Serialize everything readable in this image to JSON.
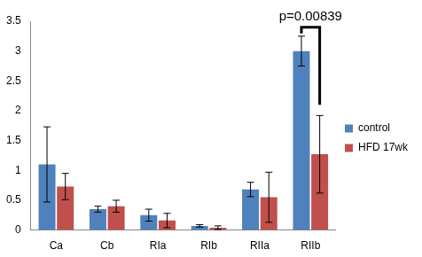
{
  "chart_data": {
    "type": "bar",
    "categories": [
      "Ca",
      "Cb",
      "RIa",
      "RIb",
      "RIIa",
      "RIIb"
    ],
    "series": [
      {
        "name": "control",
        "color": "#4f81bd",
        "values": [
          1.1,
          0.35,
          0.25,
          0.07,
          0.68,
          3.0
        ],
        "errors": [
          0.63,
          0.05,
          0.1,
          0.02,
          0.12,
          0.25
        ]
      },
      {
        "name": "HFD 17wk",
        "color": "#c0504d",
        "values": [
          0.73,
          0.4,
          0.16,
          0.04,
          0.55,
          1.27
        ],
        "errors": [
          0.22,
          0.1,
          0.12,
          0.03,
          0.42,
          0.65
        ]
      }
    ],
    "ylim": [
      0,
      3.5
    ],
    "yticks": [
      0,
      0.5,
      1,
      1.5,
      2,
      2.5,
      3,
      3.5
    ],
    "grid": false,
    "legend": "right",
    "annotations": [
      {
        "text": "p=0.00839",
        "category": "RIIb"
      }
    ]
  }
}
